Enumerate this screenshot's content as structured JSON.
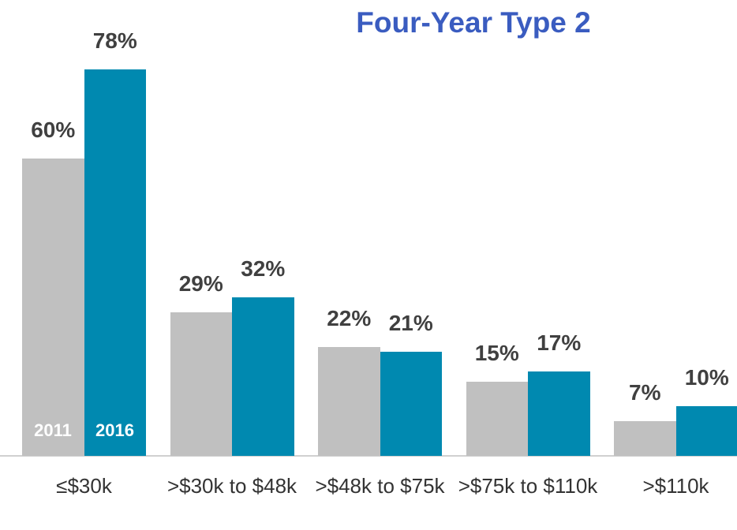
{
  "chart_data": {
    "type": "bar",
    "title": "Four-Year Type 2",
    "categories": [
      "≤$30k",
      ">$30k to $48k",
      ">$48k to $75k",
      ">$75k to $110k",
      ">$110k"
    ],
    "series": [
      {
        "name": "2011",
        "color": "#c0c0c0",
        "values": [
          60,
          29,
          22,
          15,
          7
        ],
        "value_labels": [
          "60%",
          "29%",
          "22%",
          "15%",
          "7%"
        ]
      },
      {
        "name": "2016",
        "color": "#0089b0",
        "values": [
          78,
          32,
          21,
          17,
          10
        ],
        "value_labels": [
          "78%",
          "32%",
          "21%",
          "17%",
          "10%"
        ]
      }
    ]
  }
}
